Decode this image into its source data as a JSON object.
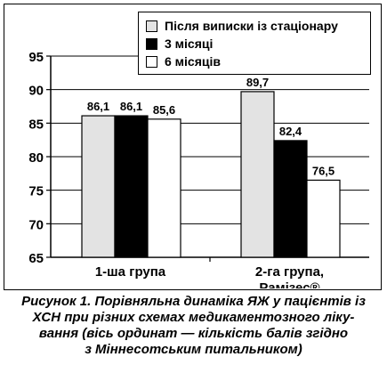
{
  "chart_data": {
    "type": "bar",
    "categories": [
      [
        "1-ша група"
      ],
      [
        "2-га група,",
        "Рамізес®"
      ]
    ],
    "series": [
      {
        "name": "Після виписки із стаціонару",
        "color": "#e3e3e3",
        "values": [
          86.1,
          89.7
        ]
      },
      {
        "name": "3 місяці",
        "color": "#000000",
        "values": [
          86.1,
          82.4
        ]
      },
      {
        "name": "6 місяців",
        "color": "#ffffff",
        "values": [
          85.6,
          76.5
        ]
      }
    ],
    "data_labels": [
      [
        "86,1",
        "89,7"
      ],
      [
        "86,1",
        "82,4"
      ],
      [
        "85,6",
        "76,5"
      ]
    ],
    "ylim": [
      65,
      95
    ],
    "yticks": [
      65,
      70,
      75,
      80,
      85,
      90,
      95
    ],
    "grid": true,
    "legend_position": "top-right"
  },
  "caption": {
    "lines": [
      "Рисунок 1. Порівняльна динаміка ЯЖ у пацієнтів із",
      "ХСН при різних схемах медикаментозного ліку-",
      "вання (вісь ординат — кількість балів згідно",
      "з Міннесотським питальником)"
    ]
  }
}
